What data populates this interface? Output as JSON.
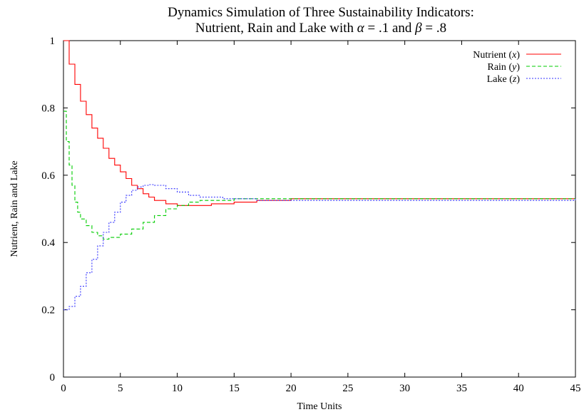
{
  "chart_data": {
    "type": "line",
    "title": "Dynamics Simulation of Three Sustainability Indicators:",
    "subtitle_prefix": "Nutrient, Rain and Lake with ",
    "alpha_symbol": "α",
    "alpha_value": " = .1 and ",
    "beta_symbol": "β",
    "beta_value": " = .8",
    "xlabel": "Time Units",
    "ylabel": "Nutrient, Rain and Lake",
    "xlim": [
      0,
      45
    ],
    "ylim": [
      0,
      1
    ],
    "xticks": [
      "0",
      "5",
      "10",
      "15",
      "20",
      "25",
      "30",
      "35",
      "40",
      "45"
    ],
    "yticks": [
      "0",
      "0.2",
      "0.4",
      "0.6",
      "0.8",
      "1"
    ],
    "legend_position": "top-right",
    "series": [
      {
        "name": "Nutrient",
        "var": "x",
        "color": "#ff0000",
        "dash": "solid",
        "x": [
          0,
          0.5,
          1,
          1.5,
          2,
          2.5,
          3,
          3.5,
          4,
          4.5,
          5,
          5.5,
          6,
          6.5,
          7,
          7.5,
          8,
          9,
          10,
          11,
          13,
          15,
          17,
          20,
          45
        ],
        "y": [
          1.0,
          0.93,
          0.87,
          0.82,
          0.78,
          0.74,
          0.71,
          0.68,
          0.65,
          0.63,
          0.61,
          0.59,
          0.57,
          0.56,
          0.545,
          0.535,
          0.525,
          0.515,
          0.51,
          0.51,
          0.515,
          0.52,
          0.525,
          0.53,
          0.53
        ]
      },
      {
        "name": "Rain",
        "var": "y",
        "color": "#00cc00",
        "dash": "dashed",
        "x": [
          0,
          0.25,
          0.5,
          0.75,
          1,
          1.25,
          1.5,
          2,
          2.5,
          3,
          3.5,
          4,
          5,
          6,
          7,
          8,
          9,
          10,
          11,
          12,
          15,
          20,
          45
        ],
        "y": [
          0.79,
          0.7,
          0.63,
          0.57,
          0.52,
          0.49,
          0.47,
          0.45,
          0.43,
          0.42,
          0.41,
          0.415,
          0.425,
          0.44,
          0.46,
          0.48,
          0.5,
          0.51,
          0.52,
          0.525,
          0.53,
          0.53,
          0.53
        ]
      },
      {
        "name": "Lake",
        "var": "z",
        "color": "#3333ff",
        "dash": "dotted",
        "x": [
          0,
          0.5,
          1,
          1.5,
          2,
          2.5,
          3,
          3.5,
          4,
          4.5,
          5,
          5.5,
          6,
          6.5,
          7,
          7.5,
          8,
          9,
          10,
          11,
          12,
          14,
          17,
          20,
          45
        ],
        "y": [
          0.2,
          0.21,
          0.24,
          0.27,
          0.31,
          0.35,
          0.39,
          0.43,
          0.46,
          0.49,
          0.52,
          0.54,
          0.555,
          0.565,
          0.57,
          0.572,
          0.57,
          0.56,
          0.55,
          0.54,
          0.535,
          0.53,
          0.525,
          0.525,
          0.53
        ]
      }
    ]
  }
}
